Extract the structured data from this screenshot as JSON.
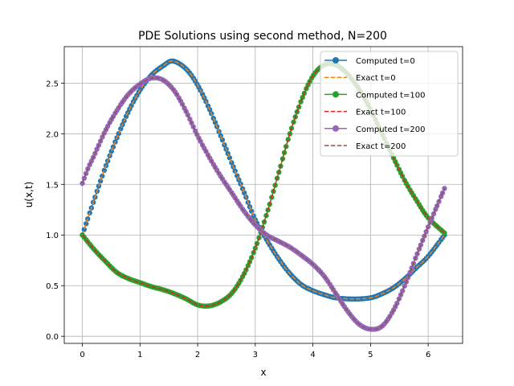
{
  "chart_data": {
    "type": "line",
    "title": "PDE Solutions using second method, N=200",
    "xlabel": "x",
    "ylabel": "u(x,t)",
    "xlim": [
      -0.3142,
      6.5973
    ],
    "ylim": [
      -0.07,
      2.86
    ],
    "xticks": [
      0,
      1,
      2,
      3,
      4,
      5,
      6
    ],
    "yticks": [
      0.0,
      0.5,
      1.0,
      1.5,
      2.0,
      2.5
    ],
    "ytick_labels": [
      "0.0",
      "0.5",
      "1.0",
      "1.5",
      "2.0",
      "2.5"
    ],
    "grid": true,
    "legend_position": "top-right",
    "series": [
      {
        "name": "Computed t=0",
        "color": "#1f77b4",
        "style": "solid-markers",
        "x": [
          0,
          0.2,
          0.4,
          0.6,
          0.8,
          1.0,
          1.2,
          1.4,
          1.5708,
          1.8,
          2.0,
          2.2,
          2.4,
          2.6,
          2.8,
          3.0,
          3.2,
          3.4,
          3.6,
          3.8,
          4.0,
          4.2,
          4.4,
          4.7124,
          5.0,
          5.2,
          5.4,
          5.6,
          5.8,
          6.0,
          6.2832
        ],
        "y": [
          1.0,
          1.34,
          1.67,
          1.96,
          2.22,
          2.43,
          2.58,
          2.67,
          2.718,
          2.64,
          2.48,
          2.25,
          1.98,
          1.7,
          1.43,
          1.15,
          0.95,
          0.77,
          0.62,
          0.51,
          0.45,
          0.41,
          0.38,
          0.368,
          0.38,
          0.42,
          0.48,
          0.57,
          0.68,
          0.79,
          1.0
        ]
      },
      {
        "name": "Exact t=0",
        "color": "#ff7f0e",
        "style": "dashed",
        "x": [
          0,
          0.2,
          0.4,
          0.6,
          0.8,
          1.0,
          1.2,
          1.4,
          1.5708,
          1.8,
          2.0,
          2.2,
          2.4,
          2.6,
          2.8,
          3.0,
          3.2,
          3.4,
          3.6,
          3.8,
          4.0,
          4.2,
          4.4,
          4.7124,
          5.0,
          5.2,
          5.4,
          5.6,
          5.8,
          6.0,
          6.2832
        ],
        "y": [
          1.0,
          1.34,
          1.67,
          1.96,
          2.22,
          2.43,
          2.58,
          2.67,
          2.718,
          2.64,
          2.48,
          2.25,
          1.98,
          1.7,
          1.43,
          1.15,
          0.95,
          0.77,
          0.62,
          0.51,
          0.45,
          0.41,
          0.38,
          0.368,
          0.38,
          0.42,
          0.48,
          0.57,
          0.68,
          0.79,
          1.0
        ]
      },
      {
        "name": "Computed t=100",
        "color": "#2ca02c",
        "style": "solid-markers",
        "x": [
          0,
          0.2,
          0.4,
          0.6,
          0.8,
          1.0,
          1.2,
          1.4,
          1.6,
          1.8,
          2.0,
          2.2,
          2.4,
          2.6,
          2.8,
          3.0,
          3.2,
          3.4,
          3.6,
          3.8,
          4.0,
          4.2,
          4.4,
          4.6,
          4.8,
          5.0,
          5.2,
          5.4,
          5.6,
          5.8,
          6.0,
          6.2832
        ],
        "y": [
          1.0,
          0.86,
          0.74,
          0.63,
          0.57,
          0.53,
          0.49,
          0.46,
          0.42,
          0.37,
          0.31,
          0.3,
          0.34,
          0.43,
          0.61,
          0.87,
          1.21,
          1.6,
          2.0,
          2.33,
          2.57,
          2.68,
          2.68,
          2.59,
          2.44,
          2.24,
          2.0,
          1.76,
          1.53,
          1.34,
          1.17,
          1.02
        ]
      },
      {
        "name": "Exact t=100",
        "color": "#d62728",
        "style": "dashed",
        "x": [
          0,
          0.2,
          0.4,
          0.6,
          0.8,
          1.0,
          1.2,
          1.4,
          1.6,
          1.8,
          2.0,
          2.2,
          2.4,
          2.6,
          2.8,
          3.0,
          3.2,
          3.4,
          3.6,
          3.8,
          4.0,
          4.2,
          4.4,
          4.6,
          4.8,
          5.0,
          5.2,
          5.4,
          5.6,
          5.8,
          6.0,
          6.2832
        ],
        "y": [
          1.0,
          0.86,
          0.74,
          0.63,
          0.57,
          0.53,
          0.49,
          0.46,
          0.42,
          0.37,
          0.31,
          0.3,
          0.34,
          0.43,
          0.61,
          0.87,
          1.21,
          1.6,
          2.0,
          2.33,
          2.57,
          2.68,
          2.68,
          2.59,
          2.44,
          2.24,
          2.0,
          1.76,
          1.53,
          1.34,
          1.17,
          1.02
        ]
      },
      {
        "name": "Computed t=200",
        "color": "#9467bd",
        "style": "solid-markers",
        "x": [
          0,
          0.1,
          0.2,
          0.4,
          0.6,
          0.8,
          1.0,
          1.2,
          1.4,
          1.6,
          1.8,
          2.0,
          2.2,
          2.4,
          2.6,
          2.8,
          3.0,
          3.2,
          3.4,
          3.6,
          3.8,
          4.0,
          4.2,
          4.4,
          4.6,
          4.8,
          5.0,
          5.2,
          5.4,
          5.6,
          5.8,
          6.0,
          6.2832
        ],
        "y": [
          1.51,
          1.66,
          1.78,
          2.03,
          2.23,
          2.39,
          2.49,
          2.55,
          2.53,
          2.42,
          2.22,
          1.98,
          1.77,
          1.58,
          1.41,
          1.24,
          1.1,
          1.0,
          0.94,
          0.88,
          0.8,
          0.71,
          0.59,
          0.42,
          0.25,
          0.12,
          0.07,
          0.1,
          0.26,
          0.51,
          0.8,
          1.08,
          1.46
        ]
      },
      {
        "name": "Exact t=200",
        "color": "#8c564b",
        "style": "dashed",
        "x": [
          0,
          0.1,
          0.2,
          0.4,
          0.6,
          0.8,
          1.0,
          1.2,
          1.4,
          1.6,
          1.8,
          2.0,
          2.2,
          2.4,
          2.6,
          2.8,
          3.0,
          3.2,
          3.4,
          3.6,
          3.8,
          4.0,
          4.2,
          4.4,
          4.6,
          4.8,
          5.0,
          5.2,
          5.4,
          5.6,
          5.8,
          6.0,
          6.2832
        ],
        "y": [
          1.51,
          1.66,
          1.78,
          2.03,
          2.23,
          2.39,
          2.49,
          2.55,
          2.53,
          2.42,
          2.22,
          1.98,
          1.77,
          1.58,
          1.41,
          1.24,
          1.1,
          1.0,
          0.94,
          0.88,
          0.8,
          0.71,
          0.59,
          0.42,
          0.25,
          0.12,
          0.07,
          0.1,
          0.26,
          0.51,
          0.8,
          1.08,
          1.46
        ]
      }
    ]
  }
}
